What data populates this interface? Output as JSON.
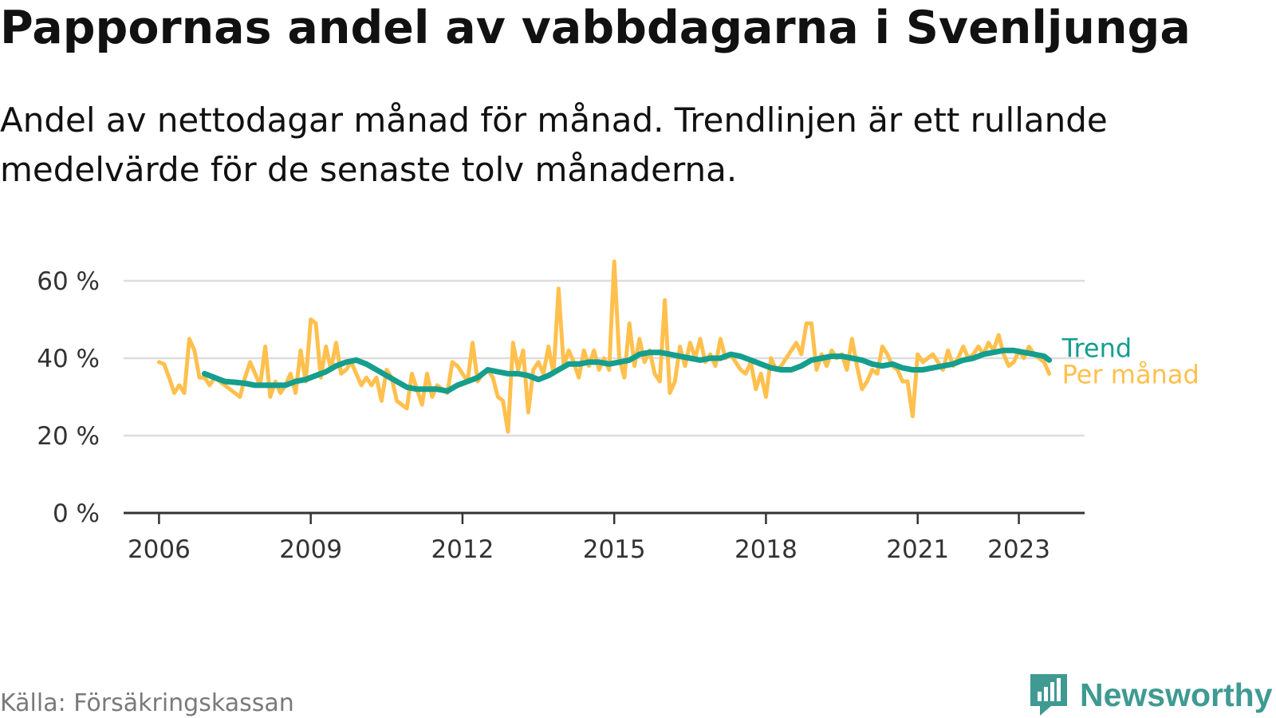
{
  "title": "Pappornas andel av vabbdagarna i Svenljunga",
  "subtitle": "Andel av nettodagar månad för månad. Trendlinjen är ett rullande medelvärde för de senaste tolv månaderna.",
  "source": "Källa: Försäkringskassan",
  "brand": "Newsworthy",
  "colors": {
    "trend": "#159e8d",
    "monthly": "#ffc04d",
    "grid": "#dddddd",
    "axis": "#333333",
    "brand": "#3f9a92"
  },
  "chart_data": {
    "type": "line",
    "x_ticks": [
      {
        "label": "2006",
        "value": 2006
      },
      {
        "label": "2009",
        "value": 2009
      },
      {
        "label": "2012",
        "value": 2012
      },
      {
        "label": "2015",
        "value": 2015
      },
      {
        "label": "2018",
        "value": 2018
      },
      {
        "label": "2021",
        "value": 2021
      },
      {
        "label": "2023",
        "value": 2023
      }
    ],
    "y_ticks": [
      {
        "label": "0 %",
        "value": 0
      },
      {
        "label": "20 %",
        "value": 20
      },
      {
        "label": "40 %",
        "value": 40
      },
      {
        "label": "60 %",
        "value": 60
      }
    ],
    "xlim": [
      2005.3,
      2024.3
    ],
    "ylim": [
      0,
      60
    ],
    "grid": true,
    "series": [
      {
        "name": "Per månad",
        "color": "#ffc04d",
        "points": [
          [
            2006.0,
            39
          ],
          [
            2006.1,
            38.5
          ],
          [
            2006.2,
            35
          ],
          [
            2006.3,
            31
          ],
          [
            2006.4,
            33
          ],
          [
            2006.5,
            31
          ],
          [
            2006.6,
            45
          ],
          [
            2006.7,
            42
          ],
          [
            2006.8,
            35
          ],
          [
            2006.9,
            35
          ],
          [
            2007.0,
            33
          ],
          [
            2007.1,
            35
          ],
          [
            2007.2,
            34
          ],
          [
            2007.3,
            33
          ],
          [
            2007.4,
            32
          ],
          [
            2007.5,
            31
          ],
          [
            2007.6,
            30
          ],
          [
            2007.7,
            35
          ],
          [
            2007.8,
            39
          ],
          [
            2007.9,
            36
          ],
          [
            2008.0,
            33
          ],
          [
            2008.1,
            43
          ],
          [
            2008.2,
            30
          ],
          [
            2008.3,
            34
          ],
          [
            2008.4,
            31
          ],
          [
            2008.5,
            33
          ],
          [
            2008.6,
            36
          ],
          [
            2008.7,
            31
          ],
          [
            2008.8,
            42
          ],
          [
            2008.9,
            34
          ],
          [
            2009.0,
            50
          ],
          [
            2009.1,
            49
          ],
          [
            2009.2,
            35
          ],
          [
            2009.3,
            43
          ],
          [
            2009.4,
            37
          ],
          [
            2009.5,
            44
          ],
          [
            2009.6,
            36
          ],
          [
            2009.7,
            37
          ],
          [
            2009.8,
            39
          ],
          [
            2009.9,
            36
          ],
          [
            2010.0,
            33
          ],
          [
            2010.1,
            35
          ],
          [
            2010.2,
            33
          ],
          [
            2010.3,
            35
          ],
          [
            2010.4,
            29
          ],
          [
            2010.5,
            37
          ],
          [
            2010.6,
            35
          ],
          [
            2010.7,
            29
          ],
          [
            2010.8,
            28
          ],
          [
            2010.9,
            27
          ],
          [
            2011.0,
            36
          ],
          [
            2011.1,
            32
          ],
          [
            2011.2,
            28
          ],
          [
            2011.3,
            36
          ],
          [
            2011.4,
            30
          ],
          [
            2011.5,
            33
          ],
          [
            2011.6,
            32
          ],
          [
            2011.7,
            31
          ],
          [
            2011.8,
            39
          ],
          [
            2011.9,
            38
          ],
          [
            2012.0,
            36
          ],
          [
            2012.1,
            34
          ],
          [
            2012.2,
            44
          ],
          [
            2012.3,
            34
          ],
          [
            2012.4,
            36
          ],
          [
            2012.5,
            37
          ],
          [
            2012.6,
            35
          ],
          [
            2012.7,
            30
          ],
          [
            2012.8,
            29
          ],
          [
            2012.9,
            21
          ],
          [
            2013.0,
            44
          ],
          [
            2013.1,
            37
          ],
          [
            2013.2,
            42
          ],
          [
            2013.3,
            26
          ],
          [
            2013.4,
            37
          ],
          [
            2013.5,
            39
          ],
          [
            2013.6,
            36
          ],
          [
            2013.7,
            43
          ],
          [
            2013.8,
            36
          ],
          [
            2013.9,
            58
          ],
          [
            2014.0,
            38
          ],
          [
            2014.1,
            42
          ],
          [
            2014.2,
            39
          ],
          [
            2014.3,
            35
          ],
          [
            2014.4,
            42
          ],
          [
            2014.5,
            38
          ],
          [
            2014.6,
            42
          ],
          [
            2014.7,
            37
          ],
          [
            2014.8,
            40
          ],
          [
            2014.9,
            37
          ],
          [
            2015.0,
            65
          ],
          [
            2015.1,
            40
          ],
          [
            2015.2,
            35
          ],
          [
            2015.3,
            49
          ],
          [
            2015.4,
            38
          ],
          [
            2015.5,
            45
          ],
          [
            2015.6,
            39
          ],
          [
            2015.7,
            42
          ],
          [
            2015.8,
            36
          ],
          [
            2015.9,
            34
          ],
          [
            2016.0,
            55
          ],
          [
            2016.1,
            31
          ],
          [
            2016.2,
            34
          ],
          [
            2016.3,
            43
          ],
          [
            2016.4,
            38
          ],
          [
            2016.5,
            44
          ],
          [
            2016.6,
            40
          ],
          [
            2016.7,
            45
          ],
          [
            2016.8,
            39
          ],
          [
            2016.9,
            41
          ],
          [
            2017.0,
            38
          ],
          [
            2017.1,
            45
          ],
          [
            2017.2,
            40
          ],
          [
            2017.3,
            41
          ],
          [
            2017.4,
            39
          ],
          [
            2017.5,
            37
          ],
          [
            2017.6,
            36
          ],
          [
            2017.7,
            39
          ],
          [
            2017.8,
            32
          ],
          [
            2017.9,
            36
          ],
          [
            2018.0,
            30
          ],
          [
            2018.1,
            40
          ],
          [
            2018.2,
            37
          ],
          [
            2018.3,
            38
          ],
          [
            2018.4,
            40
          ],
          [
            2018.5,
            42
          ],
          [
            2018.6,
            44
          ],
          [
            2018.7,
            41
          ],
          [
            2018.8,
            49
          ],
          [
            2018.9,
            49
          ],
          [
            2019.0,
            37
          ],
          [
            2019.1,
            41
          ],
          [
            2019.2,
            38
          ],
          [
            2019.3,
            42
          ],
          [
            2019.4,
            40
          ],
          [
            2019.5,
            41
          ],
          [
            2019.6,
            37
          ],
          [
            2019.7,
            45
          ],
          [
            2019.8,
            38
          ],
          [
            2019.9,
            32
          ],
          [
            2020.0,
            34
          ],
          [
            2020.1,
            37
          ],
          [
            2020.2,
            36
          ],
          [
            2020.3,
            43
          ],
          [
            2020.4,
            41
          ],
          [
            2020.5,
            38
          ],
          [
            2020.6,
            37
          ],
          [
            2020.7,
            34
          ],
          [
            2020.8,
            34
          ],
          [
            2020.9,
            25
          ],
          [
            2021.0,
            41
          ],
          [
            2021.1,
            39
          ],
          [
            2021.2,
            40
          ],
          [
            2021.3,
            41
          ],
          [
            2021.4,
            39
          ],
          [
            2021.5,
            37
          ],
          [
            2021.6,
            42
          ],
          [
            2021.7,
            38
          ],
          [
            2021.8,
            40
          ],
          [
            2021.9,
            43
          ],
          [
            2022.0,
            40
          ],
          [
            2022.1,
            41
          ],
          [
            2022.2,
            43
          ],
          [
            2022.3,
            41
          ],
          [
            2022.4,
            44
          ],
          [
            2022.5,
            42
          ],
          [
            2022.6,
            46
          ],
          [
            2022.7,
            41
          ],
          [
            2022.8,
            38
          ],
          [
            2022.9,
            39
          ],
          [
            2023.0,
            42
          ],
          [
            2023.1,
            40
          ],
          [
            2023.2,
            43
          ],
          [
            2023.3,
            41
          ],
          [
            2023.4,
            40
          ],
          [
            2023.5,
            39
          ],
          [
            2023.6,
            36
          ]
        ]
      },
      {
        "name": "Trend",
        "color": "#159e8d",
        "points": [
          [
            2006.9,
            36
          ],
          [
            2007.1,
            35
          ],
          [
            2007.3,
            34
          ],
          [
            2007.5,
            33.8
          ],
          [
            2007.7,
            33.5
          ],
          [
            2007.9,
            33
          ],
          [
            2008.1,
            33
          ],
          [
            2008.3,
            33
          ],
          [
            2008.5,
            33
          ],
          [
            2008.7,
            34
          ],
          [
            2008.9,
            34.5
          ],
          [
            2009.1,
            35.5
          ],
          [
            2009.3,
            36.5
          ],
          [
            2009.5,
            38
          ],
          [
            2009.7,
            39
          ],
          [
            2009.9,
            39.5
          ],
          [
            2010.1,
            38.5
          ],
          [
            2010.3,
            37
          ],
          [
            2010.5,
            35.5
          ],
          [
            2010.7,
            34
          ],
          [
            2010.9,
            32.5
          ],
          [
            2011.1,
            32
          ],
          [
            2011.3,
            32
          ],
          [
            2011.5,
            32
          ],
          [
            2011.7,
            31.5
          ],
          [
            2011.9,
            33
          ],
          [
            2012.1,
            34
          ],
          [
            2012.3,
            35
          ],
          [
            2012.5,
            37
          ],
          [
            2012.7,
            36.5
          ],
          [
            2012.9,
            36
          ],
          [
            2013.1,
            36
          ],
          [
            2013.3,
            35.5
          ],
          [
            2013.5,
            34.5
          ],
          [
            2013.7,
            35.5
          ],
          [
            2013.9,
            37
          ],
          [
            2014.1,
            38.5
          ],
          [
            2014.3,
            38.5
          ],
          [
            2014.5,
            39
          ],
          [
            2014.7,
            39
          ],
          [
            2014.9,
            38.5
          ],
          [
            2015.1,
            39
          ],
          [
            2015.3,
            39.5
          ],
          [
            2015.5,
            41
          ],
          [
            2015.7,
            41.5
          ],
          [
            2015.9,
            41.5
          ],
          [
            2016.1,
            41
          ],
          [
            2016.3,
            40.5
          ],
          [
            2016.5,
            40
          ],
          [
            2016.7,
            39.5
          ],
          [
            2016.9,
            40
          ],
          [
            2017.1,
            40
          ],
          [
            2017.3,
            41
          ],
          [
            2017.5,
            40.5
          ],
          [
            2017.7,
            39.5
          ],
          [
            2017.9,
            38.5
          ],
          [
            2018.1,
            37.5
          ],
          [
            2018.3,
            37
          ],
          [
            2018.5,
            37
          ],
          [
            2018.7,
            38
          ],
          [
            2018.9,
            39.5
          ],
          [
            2019.1,
            40
          ],
          [
            2019.3,
            40.5
          ],
          [
            2019.5,
            40.5
          ],
          [
            2019.7,
            40
          ],
          [
            2019.9,
            39.5
          ],
          [
            2020.1,
            38.5
          ],
          [
            2020.3,
            38
          ],
          [
            2020.5,
            38.5
          ],
          [
            2020.7,
            37.5
          ],
          [
            2020.9,
            37
          ],
          [
            2021.1,
            37
          ],
          [
            2021.3,
            37.5
          ],
          [
            2021.5,
            38
          ],
          [
            2021.7,
            38.5
          ],
          [
            2021.9,
            39.5
          ],
          [
            2022.1,
            40
          ],
          [
            2022.3,
            41
          ],
          [
            2022.5,
            41.5
          ],
          [
            2022.7,
            42
          ],
          [
            2022.9,
            42
          ],
          [
            2023.1,
            41.5
          ],
          [
            2023.3,
            41
          ],
          [
            2023.5,
            40.5
          ],
          [
            2023.6,
            39.5
          ]
        ]
      }
    ]
  }
}
